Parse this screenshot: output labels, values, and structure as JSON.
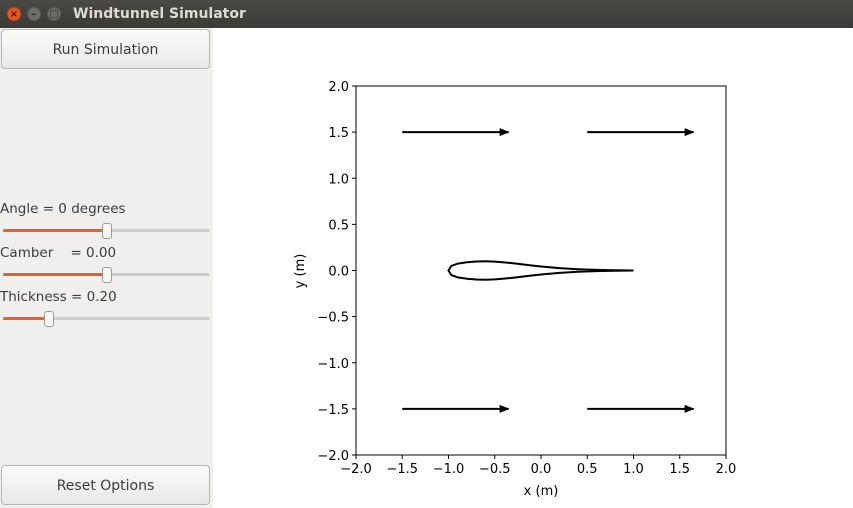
{
  "window": {
    "title": "Windtunnel Simulator",
    "close_glyph": "×",
    "minimize_glyph": "–",
    "maximize_glyph": "□"
  },
  "sidebar": {
    "run_button": "Run Simulation",
    "reset_button": "Reset Options",
    "angle": {
      "label": "Angle = 0 degrees",
      "fraction": 0.5
    },
    "camber": {
      "label": "Camber    = 0.00",
      "fraction": 0.5
    },
    "thickness": {
      "label": "Thickness = 0.20",
      "fraction": 0.22
    }
  },
  "colors": {
    "slider_fill": "#e2612f",
    "airfoil": "#000000"
  },
  "chart_data": {
    "type": "line",
    "xlabel": "x (m)",
    "ylabel": "y (m)",
    "xlim": [
      -2.0,
      2.0
    ],
    "ylim": [
      -2.0,
      2.0
    ],
    "xticks": [
      -2.0,
      -1.5,
      -1.0,
      -0.5,
      0.0,
      0.5,
      1.0,
      1.5,
      2.0
    ],
    "yticks": [
      -2.0,
      -1.5,
      -1.0,
      -0.5,
      0.0,
      0.5,
      1.0,
      1.5,
      2.0
    ],
    "xtick_labels": [
      "−2.0",
      "−1.5",
      "−1.0",
      "−0.5",
      "0.0",
      "0.5",
      "1.0",
      "1.5",
      "2.0"
    ],
    "ytick_labels": [
      "−2.0",
      "−1.5",
      "−1.0",
      "−0.5",
      "0.0",
      "0.5",
      "1.0",
      "1.5",
      "2.0"
    ],
    "grid": false,
    "airfoil": {
      "upper": [
        [
          -1.0,
          0.0
        ],
        [
          -0.97,
          0.05
        ],
        [
          -0.9,
          0.075
        ],
        [
          -0.8,
          0.09
        ],
        [
          -0.7,
          0.098
        ],
        [
          -0.6,
          0.1
        ],
        [
          -0.5,
          0.097
        ],
        [
          -0.4,
          0.088
        ],
        [
          -0.3,
          0.078
        ],
        [
          -0.2,
          0.066
        ],
        [
          -0.1,
          0.054
        ],
        [
          0.0,
          0.043
        ],
        [
          0.2,
          0.026
        ],
        [
          0.4,
          0.014
        ],
        [
          0.6,
          0.007
        ],
        [
          0.8,
          0.003
        ],
        [
          1.0,
          0.0
        ]
      ],
      "lower": [
        [
          -1.0,
          0.0
        ],
        [
          -0.97,
          -0.05
        ],
        [
          -0.9,
          -0.075
        ],
        [
          -0.8,
          -0.09
        ],
        [
          -0.7,
          -0.098
        ],
        [
          -0.6,
          -0.1
        ],
        [
          -0.5,
          -0.097
        ],
        [
          -0.4,
          -0.088
        ],
        [
          -0.3,
          -0.078
        ],
        [
          -0.2,
          -0.066
        ],
        [
          -0.1,
          -0.054
        ],
        [
          0.0,
          -0.043
        ],
        [
          0.2,
          -0.026
        ],
        [
          0.4,
          -0.014
        ],
        [
          0.6,
          -0.007
        ],
        [
          0.8,
          -0.003
        ],
        [
          1.0,
          0.0
        ]
      ]
    },
    "arrows": [
      {
        "x0": -1.5,
        "x1": -0.35,
        "y": 1.5
      },
      {
        "x0": 0.5,
        "x1": 1.65,
        "y": 1.5
      },
      {
        "x0": -1.5,
        "x1": -0.35,
        "y": -1.5
      },
      {
        "x0": 0.5,
        "x1": 1.65,
        "y": -1.5
      }
    ]
  }
}
